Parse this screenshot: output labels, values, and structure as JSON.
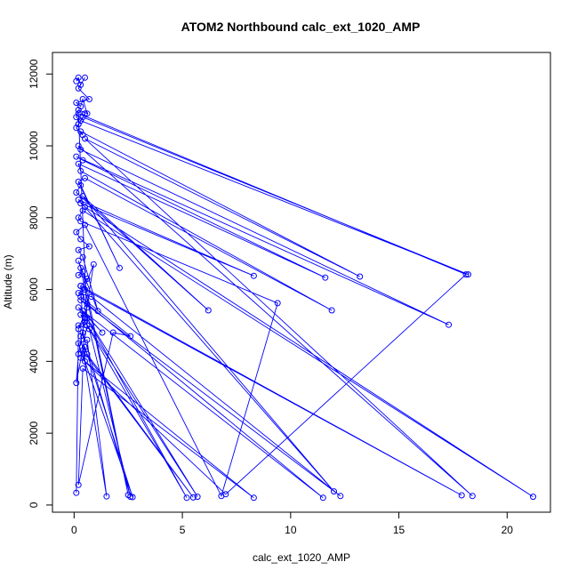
{
  "chart_data": {
    "type": "line",
    "title": "ATOM2 Northbound calc_ext_1020_AMP",
    "xlabel": "calc_ext_1020_AMP",
    "ylabel": "Altitude (m)",
    "xlim": [
      -1,
      22
    ],
    "ylim": [
      -200,
      12600
    ],
    "xticks": [
      0,
      5,
      10,
      15,
      20
    ],
    "yticks": [
      0,
      2000,
      4000,
      6000,
      8000,
      10000,
      12000
    ],
    "series_color": "#0000ff",
    "series": [
      {
        "x": [
          0.1,
          0.2,
          0.3,
          0.5,
          0.2,
          0.7,
          0.1,
          0.3,
          0.4,
          0.6,
          0.2,
          0.1,
          0.3,
          0.5,
          0.2,
          0.4,
          18.2,
          0.3,
          0.2,
          0.1,
          0.4,
          0.3,
          13.2,
          0.5,
          18.4,
          0.2,
          0.3,
          17.3,
          0.1,
          0.4,
          11.6,
          0.2,
          0.3,
          11.9,
          0.5,
          0.2,
          2.1,
          0.3,
          0.1,
          6.2,
          0.4,
          12.0,
          0.2,
          8.3,
          0.3,
          0.5,
          21.2,
          0.4,
          0.2,
          0.3,
          9.4,
          6.8,
          0.5,
          0.1,
          0.3,
          0.7,
          0.2,
          0.4,
          1.1,
          0.2,
          0.3,
          2.5,
          0.4,
          0.2,
          0.6,
          0.3,
          17.9,
          0.5,
          0.2,
          0.8,
          12.3,
          0.3,
          0.6,
          11.5,
          0.2,
          1.3,
          0.4,
          5.7,
          0.3,
          0.6,
          5.2,
          0.5,
          0.2,
          0.7,
          2.6,
          0.4,
          0.3,
          1.5,
          0.6,
          0.2,
          2.7,
          0.5,
          0.4,
          5.5,
          0.6,
          0.3,
          7.0,
          18.1,
          0.2,
          0.6,
          0.1,
          0.2,
          0.5,
          0.9,
          0.3,
          2.6,
          1.8,
          0.2,
          0.4,
          8.3,
          0.5,
          0.3,
          0.6,
          0.2,
          0.1
        ],
        "y": [
          11800,
          11900,
          11700,
          11900,
          11600,
          11300,
          11200,
          11100,
          11300,
          10900,
          11000,
          10800,
          10700,
          10900,
          10600,
          10800,
          6420,
          10700,
          10600,
          10500,
          10300,
          10400,
          6360,
          10200,
          250,
          10000,
          9900,
          5020,
          9700,
          9600,
          6330,
          9500,
          9300,
          5420,
          9100,
          9000,
          6600,
          8900,
          8700,
          5420,
          8600,
          380,
          8500,
          6380,
          8400,
          8300,
          230,
          8200,
          8000,
          7900,
          5620,
          250,
          7800,
          7600,
          7400,
          7200,
          7100,
          6900,
          5400,
          6800,
          6600,
          280,
          6500,
          6400,
          6300,
          6100,
          270,
          6000,
          5900,
          5800,
          250,
          5700,
          5600,
          200,
          5500,
          4800,
          5400,
          230,
          5300,
          5200,
          200,
          5100,
          5000,
          4900,
          230,
          4800,
          4700,
          240,
          4600,
          4500,
          220,
          4400,
          4300,
          210,
          4200,
          4100,
          300,
          6420,
          10900,
          5000,
          3400,
          4200,
          5200,
          6700,
          5800,
          4700,
          4800,
          560,
          3800,
          200,
          4000,
          6100,
          5500,
          4900,
          340
        ]
      }
    ]
  }
}
